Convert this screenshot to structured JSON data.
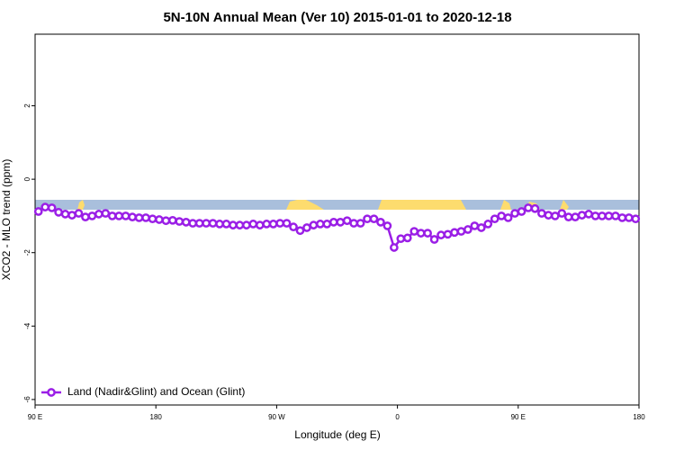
{
  "chart_data": {
    "type": "line",
    "title": "5N-10N Annual Mean (Ver 10)   2015-01-01 to 2020-12-18",
    "xlabel": "Longitude (deg E)",
    "ylabel": "XCO2 - MLO trend (ppm)",
    "x": [
      92.5,
      97.5,
      102.5,
      107.5,
      112.5,
      117.5,
      122.5,
      127.5,
      132.5,
      137.5,
      142.5,
      147.5,
      152.5,
      157.5,
      162.5,
      167.5,
      172.5,
      177.5,
      182.5,
      187.5,
      192.5,
      197.5,
      202.5,
      207.5,
      212.5,
      217.5,
      222.5,
      227.5,
      232.5,
      237.5,
      242.5,
      247.5,
      252.5,
      257.5,
      262.5,
      267.5,
      272.5,
      277.5,
      282.5,
      287.5,
      292.5,
      297.5,
      302.5,
      307.5,
      312.5,
      317.5,
      322.5,
      327.5,
      332.5,
      337.5,
      342.5,
      347.5,
      352.5,
      357.5,
      362.5,
      367.5,
      372.5,
      377.5,
      382.5,
      387.5,
      392.5,
      397.5,
      402.5,
      407.5,
      412.5,
      417.5,
      422.5,
      427.5,
      432.5,
      437.5,
      442.5,
      447.5,
      452.5,
      457.5,
      462.5,
      467.5,
      472.5,
      477.5,
      482.5,
      487.5,
      492.5,
      497.5,
      502.5,
      507.5,
      512.5,
      517.5,
      522.5,
      527.5,
      532.5,
      537.5
    ],
    "series": [
      {
        "name": "Land (Nadir&Glint) and Ocean (Glint)",
        "color": "#9a1ee6",
        "values": [
          -0.88,
          -0.76,
          -0.78,
          -0.9,
          -0.95,
          -0.98,
          -0.93,
          -1.03,
          -1.0,
          -0.95,
          -0.93,
          -1.0,
          -1.0,
          -1.0,
          -1.03,
          -1.05,
          -1.05,
          -1.08,
          -1.1,
          -1.13,
          -1.12,
          -1.15,
          -1.17,
          -1.2,
          -1.2,
          -1.2,
          -1.2,
          -1.22,
          -1.22,
          -1.25,
          -1.25,
          -1.25,
          -1.22,
          -1.25,
          -1.22,
          -1.22,
          -1.2,
          -1.2,
          -1.3,
          -1.4,
          -1.32,
          -1.25,
          -1.22,
          -1.22,
          -1.17,
          -1.17,
          -1.13,
          -1.2,
          -1.2,
          -1.08,
          -1.08,
          -1.17,
          -1.27,
          -1.86,
          -1.62,
          -1.6,
          -1.42,
          -1.47,
          -1.47,
          -1.64,
          -1.52,
          -1.5,
          -1.45,
          -1.42,
          -1.37,
          -1.27,
          -1.32,
          -1.22,
          -1.08,
          -1.0,
          -1.05,
          -0.93,
          -0.88,
          -0.78,
          -0.8,
          -0.93,
          -0.98,
          -1.0,
          -0.93,
          -1.03,
          -1.03,
          -0.98,
          -0.95,
          -1.0,
          -1.0,
          -1.0,
          -1.0,
          -1.05,
          -1.05,
          -1.08
        ]
      }
    ],
    "xlim": [
      90,
      540
    ],
    "xticks": [
      {
        "value": 90,
        "label": "90 E"
      },
      {
        "value": 180,
        "label": "180"
      },
      {
        "value": 270,
        "label": "90 W"
      },
      {
        "value": 360,
        "label": "0"
      },
      {
        "value": 450,
        "label": "90 E"
      },
      {
        "value": 540,
        "label": "180"
      }
    ],
    "ylim": [
      -6.15,
      3.95
    ],
    "yticks": [
      2,
      0,
      -2,
      -4,
      -6
    ],
    "legend": "bottom-left"
  }
}
